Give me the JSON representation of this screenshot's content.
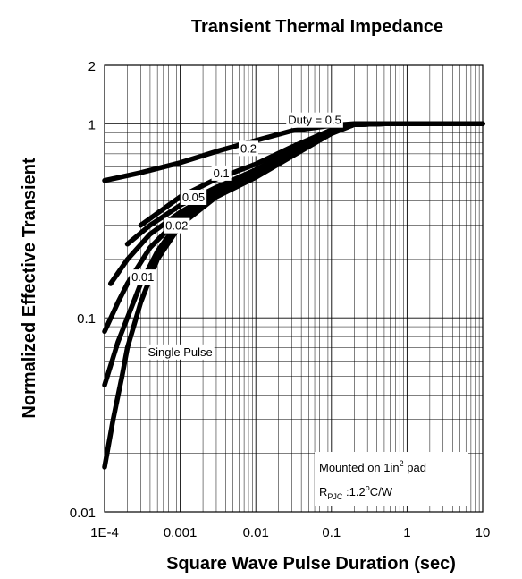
{
  "chart_data": {
    "type": "line",
    "title": "Transient Thermal Impedance",
    "xlabel": "Square Wave Pulse Duration (sec)",
    "ylabel": "Normalized Effective Transient",
    "xscale": "log",
    "yscale": "log",
    "xlim": [
      0.0001,
      10
    ],
    "ylim": [
      0.01,
      2
    ],
    "grid": true,
    "x_ticks": [
      "1E-4",
      "0.001",
      "0.01",
      "0.1",
      "1",
      "10"
    ],
    "y_ticks": [
      "0.01",
      "0.1",
      "1",
      "2"
    ],
    "series": [
      {
        "name": "Duty = 0.5",
        "x": [
          0.0001,
          0.0003,
          0.001,
          0.003,
          0.01,
          0.03,
          0.1,
          0.2,
          0.5,
          1,
          10
        ],
        "y": [
          0.51,
          0.56,
          0.63,
          0.72,
          0.82,
          0.92,
          0.98,
          1.0,
          1.0,
          1.0,
          1.0
        ]
      },
      {
        "name": "0.2",
        "x": [
          0.0003,
          0.001,
          0.003,
          0.01,
          0.03,
          0.1,
          0.2,
          0.5,
          1,
          10
        ],
        "y": [
          0.3,
          0.42,
          0.52,
          0.62,
          0.76,
          0.93,
          0.99,
          1.0,
          1.0,
          1.0
        ]
      },
      {
        "name": "0.1",
        "x": [
          0.0002,
          0.0004,
          0.001,
          0.003,
          0.01,
          0.03,
          0.1,
          0.2,
          0.5,
          1,
          10
        ],
        "y": [
          0.24,
          0.3,
          0.38,
          0.47,
          0.58,
          0.73,
          0.92,
          0.99,
          1.0,
          1.0,
          1.0
        ]
      },
      {
        "name": "0.05",
        "x": [
          0.00012,
          0.0002,
          0.0004,
          0.001,
          0.003,
          0.01,
          0.03,
          0.1,
          0.2,
          0.5,
          1,
          10
        ],
        "y": [
          0.15,
          0.2,
          0.27,
          0.35,
          0.45,
          0.56,
          0.71,
          0.91,
          0.99,
          1.0,
          1.0,
          1.0
        ]
      },
      {
        "name": "0.02",
        "x": [
          0.0001,
          0.00015,
          0.0002,
          0.0004,
          0.001,
          0.003,
          0.01,
          0.03,
          0.1,
          0.2,
          0.5,
          1,
          10
        ],
        "y": [
          0.085,
          0.12,
          0.15,
          0.23,
          0.33,
          0.44,
          0.55,
          0.7,
          0.9,
          0.99,
          1.0,
          1.0,
          1.0
        ]
      },
      {
        "name": "0.01",
        "x": [
          0.0001,
          0.00015,
          0.0002,
          0.0003,
          0.0005,
          0.001,
          0.003,
          0.01,
          0.03,
          0.1,
          0.2,
          0.5,
          1,
          10
        ],
        "y": [
          0.045,
          0.075,
          0.1,
          0.15,
          0.22,
          0.32,
          0.43,
          0.54,
          0.69,
          0.9,
          0.99,
          1.0,
          1.0,
          1.0
        ]
      },
      {
        "name": "Single Pulse",
        "x": [
          0.0001,
          0.00013,
          0.00017,
          0.0002,
          0.0003,
          0.0005,
          0.001,
          0.003,
          0.01,
          0.03,
          0.1,
          0.2,
          0.5,
          1,
          10
        ],
        "y": [
          0.017,
          0.03,
          0.05,
          0.07,
          0.12,
          0.2,
          0.3,
          0.42,
          0.53,
          0.68,
          0.89,
          0.99,
          1.0,
          1.0,
          1.0
        ]
      }
    ],
    "annotation": {
      "line1_pre": "Mounted on 1in",
      "line1_sup": "2",
      "line1_post": " pad",
      "line2_pre": "R",
      "line2_sub": "PJC",
      "line2_mid": " :1.2",
      "line2_sup": "o",
      "line2_post": "C/W"
    }
  }
}
